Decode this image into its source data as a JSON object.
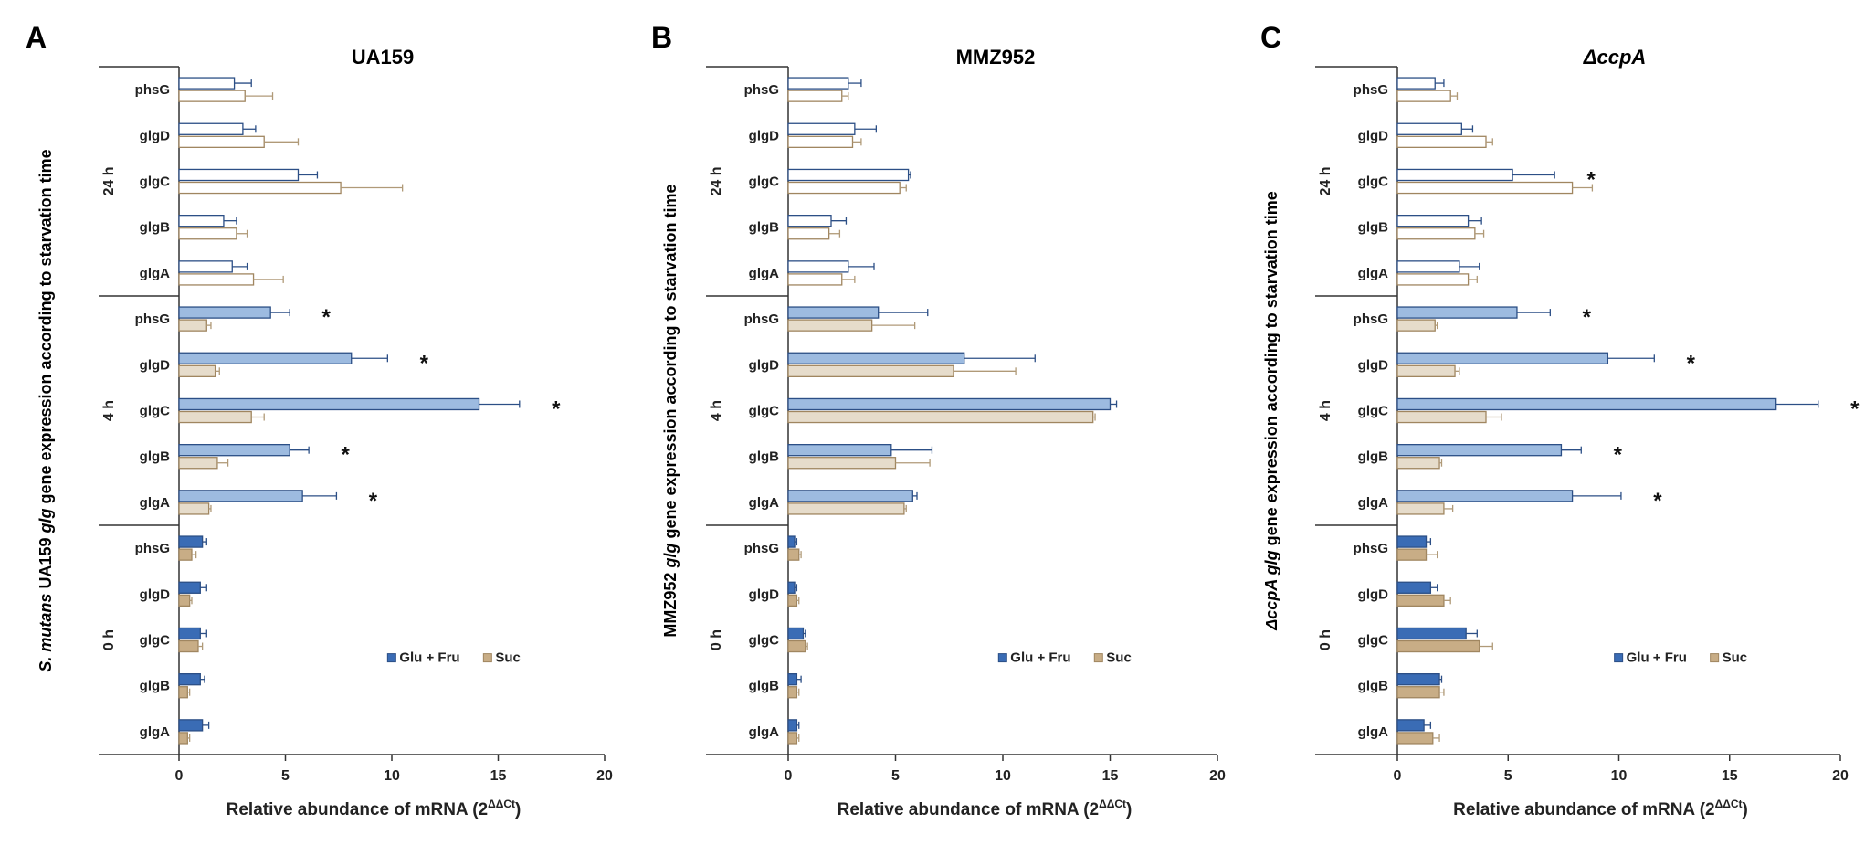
{
  "figure": {
    "panel_letters": [
      "A",
      "B",
      "C"
    ]
  },
  "colors": {
    "glu_0h": "#3a6cb5",
    "glu_4h": "#9dbbe0",
    "glu_24h": "#ffffff",
    "suc_0h": "#c8ad86",
    "suc_4h": "#e6dccb",
    "suc_24h": "#ffffff",
    "glu_edge": "#2c4f86",
    "suc_edge": "#a08660",
    "suc_err": "#b09a78",
    "axis": "#333333"
  },
  "chart_data": [
    {
      "type": "bar",
      "orientation": "horizontal",
      "panel": "A",
      "title": "UA159",
      "title_italic": false,
      "ylabel_parts": [
        {
          "text": "S. mutans",
          "italic": true
        },
        {
          "text": " UA159 ",
          "italic": false
        },
        {
          "text": "glg",
          "italic": true
        },
        {
          "text": " gene expression according to starvation time",
          "italic": false
        }
      ],
      "xlabel_prefix": "Relative abundance of mRNA (2",
      "xlabel_sup": "ΔΔCt",
      "xlabel_suffix": ")",
      "xlim": [
        0,
        20
      ],
      "xticks": [
        0,
        5,
        10,
        15,
        20
      ],
      "legend": [
        "Glu + Fru",
        "Suc"
      ],
      "groups": [
        {
          "time": "24 h",
          "categories": [
            "phsG",
            "glgD",
            "glgC",
            "glgB",
            "glgA"
          ],
          "series": [
            {
              "name": "Glu + Fru",
              "values": [
                2.6,
                3.0,
                5.6,
                2.1,
                2.5
              ],
              "errors": [
                0.8,
                0.6,
                0.9,
                0.6,
                0.7
              ]
            },
            {
              "name": "Suc",
              "values": [
                3.1,
                4.0,
                7.6,
                2.7,
                3.5
              ],
              "errors": [
                1.3,
                1.6,
                2.9,
                0.5,
                1.4
              ]
            }
          ],
          "stars": [
            false,
            false,
            false,
            false,
            false
          ]
        },
        {
          "time": "4 h",
          "categories": [
            "phsG",
            "glgD",
            "glgC",
            "glgB",
            "glgA"
          ],
          "series": [
            {
              "name": "Glu + Fru",
              "values": [
                4.3,
                8.1,
                14.1,
                5.2,
                5.8
              ],
              "errors": [
                0.9,
                1.7,
                1.9,
                0.9,
                1.6
              ]
            },
            {
              "name": "Suc",
              "values": [
                1.3,
                1.7,
                3.4,
                1.8,
                1.4
              ],
              "errors": [
                0.2,
                0.2,
                0.6,
                0.5,
                0.1
              ]
            }
          ],
          "stars": [
            true,
            true,
            true,
            true,
            true
          ]
        },
        {
          "time": "0 h",
          "categories": [
            "phsG",
            "glgD",
            "glgC",
            "glgB",
            "glgA"
          ],
          "series": [
            {
              "name": "Glu + Fru",
              "values": [
                1.1,
                1.0,
                1.0,
                1.0,
                1.1
              ],
              "errors": [
                0.2,
                0.3,
                0.3,
                0.2,
                0.3
              ]
            },
            {
              "name": "Suc",
              "values": [
                0.6,
                0.5,
                0.9,
                0.4,
                0.4
              ],
              "errors": [
                0.2,
                0.1,
                0.2,
                0.1,
                0.1
              ]
            }
          ],
          "stars": [
            false,
            false,
            false,
            false,
            false
          ]
        }
      ],
      "star_label": "*"
    },
    {
      "type": "bar",
      "orientation": "horizontal",
      "panel": "B",
      "title": "MMZ952",
      "title_italic": false,
      "ylabel_parts": [
        {
          "text": "MMZ952 ",
          "italic": false
        },
        {
          "text": "glg",
          "italic": true
        },
        {
          "text": " gene expression according to starvation time",
          "italic": false
        }
      ],
      "xlabel_prefix": "Relative abundance of mRNA (2",
      "xlabel_sup": "ΔΔCt",
      "xlabel_suffix": ")",
      "xlim": [
        0,
        20
      ],
      "xticks": [
        0,
        5,
        10,
        15,
        20
      ],
      "legend": [
        "Glu + Fru",
        "Suc"
      ],
      "groups": [
        {
          "time": "24 h",
          "categories": [
            "phsG",
            "glgD",
            "glgC",
            "glgB",
            "glgA"
          ],
          "series": [
            {
              "name": "Glu + Fru",
              "values": [
                2.8,
                3.1,
                5.6,
                2.0,
                2.8
              ],
              "errors": [
                0.6,
                1.0,
                0.1,
                0.7,
                1.2
              ]
            },
            {
              "name": "Suc",
              "values": [
                2.5,
                3.0,
                5.2,
                1.9,
                2.5
              ],
              "errors": [
                0.3,
                0.4,
                0.3,
                0.5,
                0.6
              ]
            }
          ],
          "stars": [
            false,
            false,
            false,
            false,
            false
          ]
        },
        {
          "time": "4 h",
          "categories": [
            "phsG",
            "glgD",
            "glgC",
            "glgB",
            "glgA"
          ],
          "series": [
            {
              "name": "Glu + Fru",
              "values": [
                4.2,
                8.2,
                15.0,
                4.8,
                5.8
              ],
              "errors": [
                2.3,
                3.3,
                0.3,
                1.9,
                0.2
              ]
            },
            {
              "name": "Suc",
              "values": [
                3.9,
                7.7,
                14.2,
                5.0,
                5.4
              ],
              "errors": [
                2.0,
                2.9,
                0.1,
                1.6,
                0.1
              ]
            }
          ],
          "stars": [
            false,
            false,
            false,
            false,
            false
          ]
        },
        {
          "time": "0 h",
          "categories": [
            "phsG",
            "glgD",
            "glgC",
            "glgB",
            "glgA"
          ],
          "series": [
            {
              "name": "Glu + Fru",
              "values": [
                0.3,
                0.3,
                0.7,
                0.4,
                0.4
              ],
              "errors": [
                0.1,
                0.1,
                0.1,
                0.2,
                0.1
              ]
            },
            {
              "name": "Suc",
              "values": [
                0.5,
                0.4,
                0.8,
                0.4,
                0.4
              ],
              "errors": [
                0.1,
                0.1,
                0.1,
                0.1,
                0.1
              ]
            }
          ],
          "stars": [
            false,
            false,
            false,
            false,
            false
          ]
        }
      ],
      "star_label": "*"
    },
    {
      "type": "bar",
      "orientation": "horizontal",
      "panel": "C",
      "title": "ΔccpA",
      "title_italic": true,
      "ylabel_parts": [
        {
          "text": "ΔccpA glg",
          "italic": true
        },
        {
          "text": " gene expression according to starvation time",
          "italic": false
        }
      ],
      "xlabel_prefix": "Relative abundance of mRNA (2",
      "xlabel_sup": "ΔΔCt",
      "xlabel_suffix": ")",
      "xlim": [
        0,
        20
      ],
      "xticks": [
        0,
        5,
        10,
        15,
        20
      ],
      "legend": [
        "Glu + Fru",
        "Suc"
      ],
      "groups": [
        {
          "time": "24 h",
          "categories": [
            "phsG",
            "glgD",
            "glgC",
            "glgB",
            "glgA"
          ],
          "series": [
            {
              "name": "Glu + Fru",
              "values": [
                1.7,
                2.9,
                5.2,
                3.2,
                2.8
              ],
              "errors": [
                0.4,
                0.5,
                1.9,
                0.6,
                0.9
              ]
            },
            {
              "name": "Suc",
              "values": [
                2.4,
                4.0,
                7.9,
                3.5,
                3.2
              ],
              "errors": [
                0.3,
                0.3,
                0.9,
                0.4,
                0.4
              ]
            }
          ],
          "stars": [
            false,
            false,
            true,
            false,
            false
          ]
        },
        {
          "time": "4 h",
          "categories": [
            "phsG",
            "glgD",
            "glgC",
            "glgB",
            "glgA"
          ],
          "series": [
            {
              "name": "Glu + Fru",
              "values": [
                5.4,
                9.5,
                17.1,
                7.4,
                7.9
              ],
              "errors": [
                1.5,
                2.1,
                1.9,
                0.9,
                2.2
              ]
            },
            {
              "name": "Suc",
              "values": [
                1.7,
                2.6,
                4.0,
                1.9,
                2.1
              ],
              "errors": [
                0.1,
                0.2,
                0.7,
                0.1,
                0.4
              ]
            }
          ],
          "stars": [
            true,
            true,
            true,
            true,
            true
          ]
        },
        {
          "time": "0 h",
          "categories": [
            "phsG",
            "glgD",
            "glgC",
            "glgB",
            "glgA"
          ],
          "series": [
            {
              "name": "Glu + Fru",
              "values": [
                1.3,
                1.5,
                3.1,
                1.9,
                1.2
              ],
              "errors": [
                0.2,
                0.3,
                0.5,
                0.1,
                0.3
              ]
            },
            {
              "name": "Suc",
              "values": [
                1.3,
                2.1,
                3.7,
                1.9,
                1.6
              ],
              "errors": [
                0.5,
                0.3,
                0.6,
                0.2,
                0.3
              ]
            }
          ],
          "stars": [
            false,
            false,
            false,
            false,
            false
          ]
        }
      ],
      "star_label": "*"
    }
  ]
}
